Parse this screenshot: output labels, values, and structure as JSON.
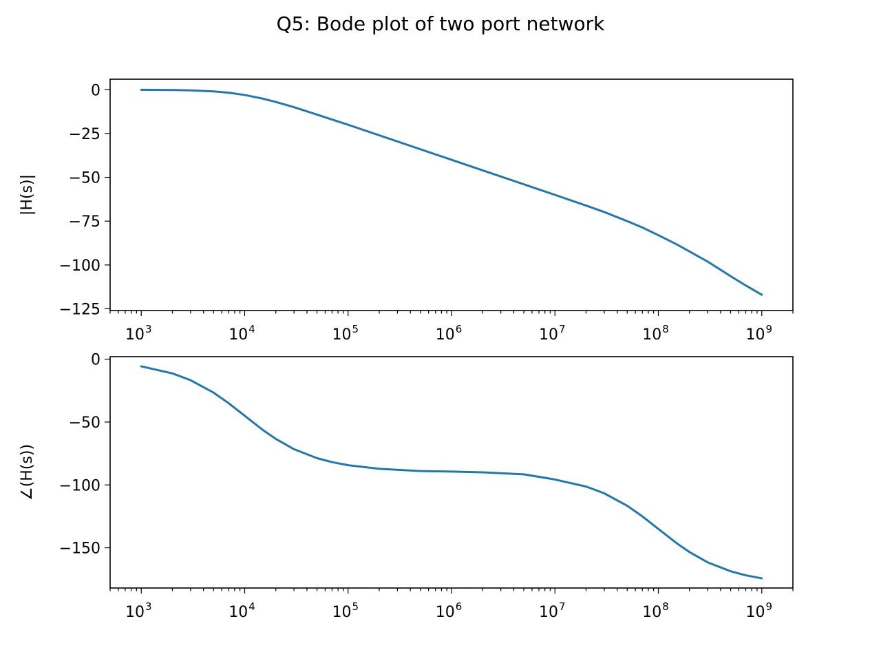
{
  "figure": {
    "title": "Q5: Bode plot of two port network"
  },
  "chart_data": [
    {
      "type": "line",
      "xscale": "log",
      "xlim": [
        500,
        2000000000
      ],
      "ylim": [
        -126,
        6
      ],
      "xticks": [
        1000,
        10000,
        100000,
        1000000,
        10000000,
        100000000,
        1000000000
      ],
      "xtick_labels": [
        {
          "base": "10",
          "exp": "3"
        },
        {
          "base": "10",
          "exp": "4"
        },
        {
          "base": "10",
          "exp": "5"
        },
        {
          "base": "10",
          "exp": "6"
        },
        {
          "base": "10",
          "exp": "7"
        },
        {
          "base": "10",
          "exp": "8"
        },
        {
          "base": "10",
          "exp": "9"
        }
      ],
      "yticks": [
        0,
        -25,
        -50,
        -75,
        -100,
        -125
      ],
      "ytick_labels": [
        "0",
        "−25",
        "−50",
        "−75",
        "−100",
        "−125"
      ],
      "xlabel": "",
      "ylabel": "|H(s)|",
      "grid": false,
      "series": [
        {
          "color": "#1f77b4",
          "x": [
            1000,
            2000,
            3000,
            5000,
            7000,
            10000,
            15000,
            20000,
            30000,
            50000,
            100000,
            1000000,
            10000000,
            20000000,
            30000000,
            50000000,
            70000000,
            100000000,
            150000000,
            200000000,
            300000000,
            500000000,
            700000000,
            1000000000
          ],
          "y": [
            -0.04,
            -0.17,
            -0.37,
            -0.97,
            -1.72,
            -3.01,
            -5.12,
            -6.99,
            -10.0,
            -14.2,
            -20.0,
            -40.0,
            -60.0,
            -66.1,
            -69.8,
            -75.0,
            -78.6,
            -83.0,
            -88.2,
            -92.3,
            -98.1,
            -106.4,
            -111.7,
            -117.0
          ]
        }
      ]
    },
    {
      "type": "line",
      "xscale": "log",
      "xlim": [
        500,
        2000000000
      ],
      "ylim": [
        -182,
        2
      ],
      "xticks": [
        1000,
        10000,
        100000,
        1000000,
        10000000,
        100000000,
        1000000000
      ],
      "xtick_labels": [
        {
          "base": "10",
          "exp": "3"
        },
        {
          "base": "10",
          "exp": "4"
        },
        {
          "base": "10",
          "exp": "5"
        },
        {
          "base": "10",
          "exp": "6"
        },
        {
          "base": "10",
          "exp": "7"
        },
        {
          "base": "10",
          "exp": "8"
        },
        {
          "base": "10",
          "exp": "9"
        }
      ],
      "yticks": [
        0,
        -50,
        -100,
        -150
      ],
      "ytick_labels": [
        "0",
        "−50",
        "−100",
        "−150"
      ],
      "xlabel": "",
      "ylabel": "∠(H(s))",
      "grid": false,
      "series": [
        {
          "color": "#1f77b4",
          "x": [
            1000,
            2000,
            3000,
            5000,
            7000,
            10000,
            15000,
            20000,
            30000,
            50000,
            70000,
            100000,
            200000,
            500000,
            1000000,
            2000000,
            5000000,
            10000000,
            20000000,
            30000000,
            50000000,
            70000000,
            100000000,
            150000000,
            200000000,
            300000000,
            500000000,
            700000000,
            1000000000
          ],
          "y": [
            -5.7,
            -11.3,
            -16.7,
            -26.6,
            -35.0,
            -45.0,
            -56.3,
            -63.4,
            -71.6,
            -78.7,
            -81.9,
            -84.3,
            -87.2,
            -89.0,
            -89.4,
            -90.0,
            -91.6,
            -95.7,
            -101.3,
            -106.7,
            -116.6,
            -125.0,
            -135.0,
            -146.3,
            -153.4,
            -161.6,
            -168.7,
            -171.9,
            -174.3
          ]
        }
      ]
    }
  ]
}
